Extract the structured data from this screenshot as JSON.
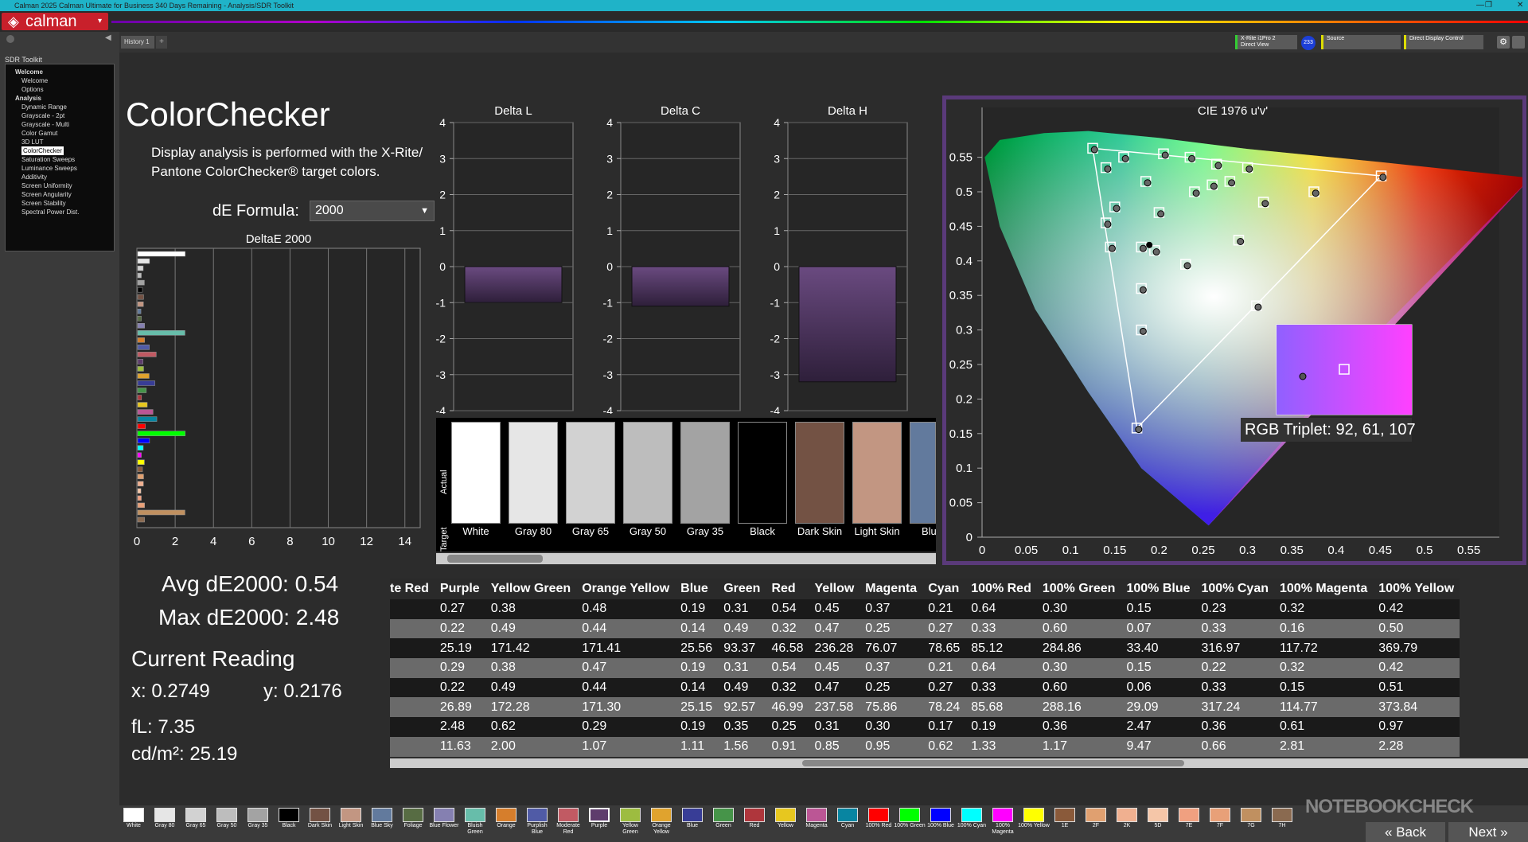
{
  "window": {
    "title": "Calman 2025 Calman Ultimate for Business 340 Days Remaining  - Analysis/SDR Toolkit",
    "min": "—",
    "max": "❐",
    "close": "✕"
  },
  "app": {
    "logo": "calman",
    "dropdown": "▾"
  },
  "sidebar": {
    "header": "SDR Toolkit",
    "items": [
      {
        "label": "Welcome",
        "bold": true
      },
      {
        "label": "Welcome"
      },
      {
        "label": "Options"
      },
      {
        "label": "Analysis",
        "bold": true
      },
      {
        "label": "Dynamic Range"
      },
      {
        "label": "Grayscale - 2pt"
      },
      {
        "label": "Grayscale - Multi"
      },
      {
        "label": "Color Gamut"
      },
      {
        "label": "3D LUT"
      },
      {
        "label": "ColorChecker",
        "selected": true
      },
      {
        "label": "Saturation Sweeps"
      },
      {
        "label": "Luminance Sweeps"
      },
      {
        "label": "Additivity"
      },
      {
        "label": "Screen Uniformity"
      },
      {
        "label": "Screen Angularity"
      },
      {
        "label": "Screen Stability"
      },
      {
        "label": "Spectral Power Dist."
      }
    ]
  },
  "tabs": {
    "history": "History 1",
    "plus": "+"
  },
  "devices": {
    "meter": "X-Rite i1Pro 2\nDirect View",
    "meter_badge": "233",
    "source": "Source",
    "display": "Direct Display Control"
  },
  "page": {
    "title": "ColorChecker",
    "description": "Display analysis is performed with the X-Rite/ Pantone ColorChecker® target colors.",
    "de_formula_label": "dE Formula:",
    "de_formula_value": "2000"
  },
  "deltae_chart": {
    "title": "DeltaE 2000",
    "xticks": [
      "0",
      "2",
      "4",
      "6",
      "8",
      "10",
      "12",
      "14"
    ]
  },
  "stats": {
    "avg": "Avg dE2000: 0.54",
    "max": "Max dE2000: 2.48",
    "current_reading": "Current Reading",
    "x": "x: 0.2749",
    "y": "y: 0.2176",
    "fl": "fL: 7.35",
    "cdm2": "cd/m²: 25.19"
  },
  "delta_charts": [
    {
      "title": "Delta L",
      "value": -1.0
    },
    {
      "title": "Delta C",
      "value": -1.1
    },
    {
      "title": "Delta H",
      "value": -3.2
    }
  ],
  "delta_ticks": [
    "4",
    "3",
    "2",
    "1",
    "0",
    "-1",
    "-2",
    "-3",
    "-4"
  ],
  "swatches": {
    "actual_label": "Actual",
    "target_label": "Target",
    "items": [
      {
        "name": "White",
        "color": "#ffffff"
      },
      {
        "name": "Gray 80",
        "color": "#e6e6e6"
      },
      {
        "name": "Gray 65",
        "color": "#d2d2d2"
      },
      {
        "name": "Gray 50",
        "color": "#bdbdbd"
      },
      {
        "name": "Gray 35",
        "color": "#a3a3a3"
      },
      {
        "name": "Black",
        "color": "#000000"
      },
      {
        "name": "Dark Skin",
        "color": "#735244"
      },
      {
        "name": "Light Skin",
        "color": "#c29682"
      },
      {
        "name": "Blue",
        "color": "#627a9d"
      }
    ]
  },
  "cie": {
    "title": "CIE 1976 u'v'",
    "yticks": [
      "0.55",
      "0.5",
      "0.45",
      "0.4",
      "0.35",
      "0.3",
      "0.25",
      "0.2",
      "0.15",
      "0.1",
      "0.05",
      "0"
    ],
    "xticks": [
      "0",
      "0.05",
      "0.1",
      "0.15",
      "0.2",
      "0.25",
      "0.3",
      "0.35",
      "0.4",
      "0.45",
      "0.5",
      "0.55"
    ],
    "rgb_triplet": "RGB Triplet: 92, 61, 107"
  },
  "table": {
    "headers": [
      "te Red",
      "Purple",
      "Yellow Green",
      "Orange Yellow",
      "Blue",
      "Green",
      "Red",
      "Yellow",
      "Magenta",
      "Cyan",
      "100% Red",
      "100% Green",
      "100% Blue",
      "100% Cyan",
      "100% Magenta",
      "100% Yellow"
    ],
    "rows": [
      [
        "",
        "0.27",
        "0.38",
        "0.48",
        "0.19",
        "0.31",
        "0.54",
        "0.45",
        "0.37",
        "0.21",
        "0.64",
        "0.30",
        "0.15",
        "0.23",
        "0.32",
        "0.42"
      ],
      [
        "",
        "0.22",
        "0.49",
        "0.44",
        "0.14",
        "0.49",
        "0.32",
        "0.47",
        "0.25",
        "0.27",
        "0.33",
        "0.60",
        "0.07",
        "0.33",
        "0.16",
        "0.50"
      ],
      [
        "",
        "25.19",
        "171.42",
        "171.41",
        "25.56",
        "93.37",
        "46.58",
        "236.28",
        "76.07",
        "78.65",
        "85.12",
        "284.86",
        "33.40",
        "316.97",
        "117.72",
        "369.79"
      ],
      [
        "",
        "0.29",
        "0.38",
        "0.47",
        "0.19",
        "0.31",
        "0.54",
        "0.45",
        "0.37",
        "0.21",
        "0.64",
        "0.30",
        "0.15",
        "0.22",
        "0.32",
        "0.42"
      ],
      [
        "",
        "0.22",
        "0.49",
        "0.44",
        "0.14",
        "0.49",
        "0.32",
        "0.47",
        "0.25",
        "0.27",
        "0.33",
        "0.60",
        "0.06",
        "0.33",
        "0.15",
        "0.51"
      ],
      [
        "",
        "26.89",
        "172.28",
        "171.30",
        "25.15",
        "92.57",
        "46.99",
        "237.58",
        "75.86",
        "78.24",
        "85.68",
        "288.16",
        "29.09",
        "317.24",
        "114.77",
        "373.84"
      ],
      [
        "",
        "2.48",
        "0.62",
        "0.29",
        "0.19",
        "0.35",
        "0.25",
        "0.31",
        "0.30",
        "0.17",
        "0.19",
        "0.36",
        "2.47",
        "0.36",
        "0.61",
        "0.97"
      ],
      [
        "",
        "11.63",
        "2.00",
        "1.07",
        "1.11",
        "1.56",
        "0.91",
        "0.85",
        "0.95",
        "0.62",
        "1.33",
        "1.17",
        "9.47",
        "0.66",
        "2.81",
        "2.28"
      ]
    ]
  },
  "bottom_swatches": [
    {
      "label": "White",
      "color": "#ffffff"
    },
    {
      "label": "Gray 80",
      "color": "#e6e6e6"
    },
    {
      "label": "Gray 65",
      "color": "#d2d2d2"
    },
    {
      "label": "Gray 50",
      "color": "#bdbdbd"
    },
    {
      "label": "Gray 35",
      "color": "#a3a3a3"
    },
    {
      "label": "Black",
      "color": "#000000"
    },
    {
      "label": "Dark Skin",
      "color": "#735244"
    },
    {
      "label": "Light Skin",
      "color": "#c29682"
    },
    {
      "label": "Blue Sky",
      "color": "#627a9d"
    },
    {
      "label": "Foliage",
      "color": "#576c43"
    },
    {
      "label": "Blue Flower",
      "color": "#8580b1"
    },
    {
      "label": "Bluish Green",
      "color": "#67bdaa"
    },
    {
      "label": "Orange",
      "color": "#d67e2c"
    },
    {
      "label": "Purplish Blue",
      "color": "#505ba6"
    },
    {
      "label": "Moderate Red",
      "color": "#c15a63"
    },
    {
      "label": "Purple",
      "color": "#5e3c6c",
      "selected": true
    },
    {
      "label": "Yellow Green",
      "color": "#9dbc40"
    },
    {
      "label": "Orange Yellow",
      "color": "#e0a32e"
    },
    {
      "label": "Blue",
      "color": "#383d96"
    },
    {
      "label": "Green",
      "color": "#469449"
    },
    {
      "label": "Red",
      "color": "#af363c"
    },
    {
      "label": "Yellow",
      "color": "#e7c71f"
    },
    {
      "label": "Magenta",
      "color": "#bb5695"
    },
    {
      "label": "Cyan",
      "color": "#0885a1"
    },
    {
      "label": "100% Red",
      "color": "#ff0000"
    },
    {
      "label": "100% Green",
      "color": "#00ff00"
    },
    {
      "label": "100% Blue",
      "color": "#0000ff"
    },
    {
      "label": "100% Cyan",
      "color": "#00ffff"
    },
    {
      "label": "100% Magenta",
      "color": "#ff00ff"
    },
    {
      "label": "100% Yellow",
      "color": "#ffff00"
    },
    {
      "label": "1E",
      "color": "#8a5a3a"
    },
    {
      "label": "2F",
      "color": "#e0a070"
    },
    {
      "label": "2K",
      "color": "#f0b090"
    },
    {
      "label": "5D",
      "color": "#f5c6a8"
    },
    {
      "label": "7E",
      "color": "#f0a080"
    },
    {
      "label": "7F",
      "color": "#e8a078"
    },
    {
      "label": "7G",
      "color": "#c09060"
    },
    {
      "label": "7H",
      "color": "#8a6a50"
    }
  ],
  "nav": {
    "back": "Back",
    "next": "Next"
  },
  "watermark": "NOTEBOOKCHECK"
}
